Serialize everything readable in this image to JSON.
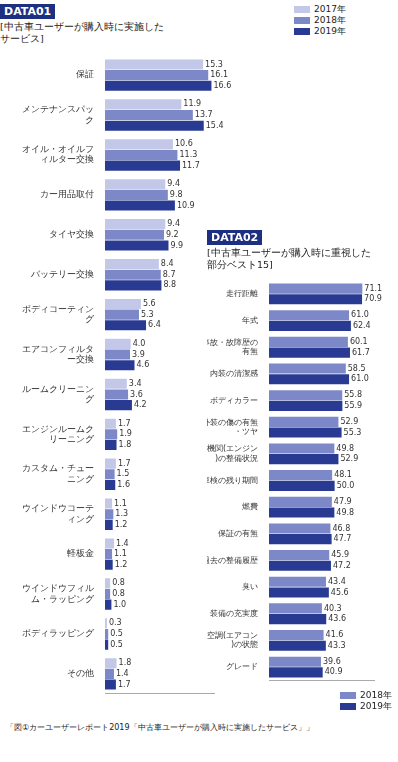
{
  "caption": "「図①カーユーザーレポート2019「中古車ユーザーが購入時に実施したサービス」」",
  "chart_data": [
    {
      "type": "bar",
      "title": "DATA01",
      "subtitle": "[中古車ユーザーが購入時に実施したサービス]",
      "orientation": "horizontal",
      "grid": false,
      "tick_labels": "y",
      "data_labels": true,
      "legend": "upper right",
      "xlim": [
        0,
        17
      ],
      "categories": [
        "保証",
        "メンテナンスパック",
        "オイル・オイルフィルター交換",
        "カー用品取付",
        "タイヤ交換",
        "バッテリー交換",
        "ボディコーティング",
        "エアコンフィルター交換",
        "ルームクリーニング",
        "エンジンルームクリーニング",
        "カスタム・チューニング",
        "ウインドウコーティング",
        "軽板金",
        "ウインドウフィルム・ラッピング",
        "ボディラッピング",
        "その他"
      ],
      "series": [
        {
          "name": "2017年",
          "color": "#c3c8e8",
          "values": [
            15.3,
            11.9,
            10.6,
            9.4,
            9.4,
            8.4,
            5.6,
            4.0,
            3.4,
            1.7,
            1.7,
            1.1,
            1.4,
            0.8,
            0.3,
            1.8
          ],
          "value_labels": [
            "15.3",
            "11.9",
            "10.6",
            "9.4",
            "9.4",
            "8.4",
            "5.6",
            "4.0",
            "3.4",
            "1.7",
            "1.7",
            "1.1",
            "1.4",
            "0.8",
            "0.3",
            "1.8"
          ]
        },
        {
          "name": "2018年",
          "color": "#7d88c8",
          "values": [
            16.1,
            13.7,
            11.3,
            9.8,
            9.2,
            8.7,
            5.3,
            3.9,
            3.6,
            1.9,
            1.5,
            1.3,
            1.1,
            0.8,
            0.5,
            1.4
          ],
          "value_labels": [
            "16.1",
            "13.7",
            "11.3",
            "9.8",
            "9.2",
            "8.7",
            "5.3",
            "3.9",
            "3.6",
            "1.9",
            "1.5",
            "1.3",
            "1.1",
            "0.8",
            "0.5",
            "1.4"
          ]
        },
        {
          "name": "2019年",
          "color": "#283a92",
          "values": [
            16.6,
            15.4,
            11.7,
            10.9,
            9.9,
            8.8,
            6.4,
            4.6,
            4.2,
            1.8,
            1.6,
            1.2,
            1.2,
            1.0,
            0.5,
            1.7
          ],
          "value_labels": [
            "16.6",
            "15.4",
            "11.7",
            "10.9",
            "9.9",
            "8.8",
            "6.4",
            "4.6",
            "4.2",
            "1.8",
            "1.6",
            "1.2",
            "1.2",
            "1.0",
            "0.5",
            "1.7"
          ]
        }
      ]
    },
    {
      "type": "bar",
      "title": "DATA02",
      "subtitle": "[中古車ユーザーが購入時に重視した部分ベスト15]",
      "orientation": "horizontal",
      "grid": false,
      "tick_labels": "y",
      "data_labels": true,
      "legend": "lower right",
      "xlim": [
        0,
        80
      ],
      "categories": [
        "走行距離",
        "年式",
        "事故・故障歴の有無",
        "内装の清潔感",
        "ボディカラー",
        "外装の傷の有無・ツヤ",
        "機関(エンジン)の整備状況",
        "車検の残り期間",
        "燃費",
        "保証の有無",
        "過去の整備履歴",
        "臭い",
        "装備の充実度",
        "空調(エアコン)の状態",
        "グレード"
      ],
      "series": [
        {
          "name": "2018年",
          "color": "#7d88c8",
          "values": [
            71.1,
            61.0,
            60.1,
            58.5,
            55.8,
            52.9,
            49.8,
            48.1,
            47.9,
            46.8,
            45.9,
            43.4,
            40.3,
            41.6,
            39.6
          ],
          "value_labels": [
            "71.1",
            "61.0",
            "60.1",
            "58.5",
            "55.8",
            "52.9",
            "49.8",
            "48.1",
            "47.9",
            "46.8",
            "45.9",
            "43.4",
            "40.3",
            "41.6",
            "39.6"
          ]
        },
        {
          "name": "2019年",
          "color": "#283a92",
          "values": [
            70.9,
            62.4,
            61.7,
            61.0,
            55.9,
            55.3,
            52.9,
            50.0,
            49.8,
            47.7,
            47.2,
            45.6,
            43.6,
            43.3,
            40.9
          ],
          "value_labels": [
            "70.9",
            "62.4",
            "61.7",
            "61.0",
            "55.9",
            "55.3",
            "52.9",
            "50.0",
            "49.8",
            "47.7",
            "47.2",
            "45.6",
            "43.6",
            "43.3",
            "40.9"
          ]
        }
      ]
    }
  ]
}
